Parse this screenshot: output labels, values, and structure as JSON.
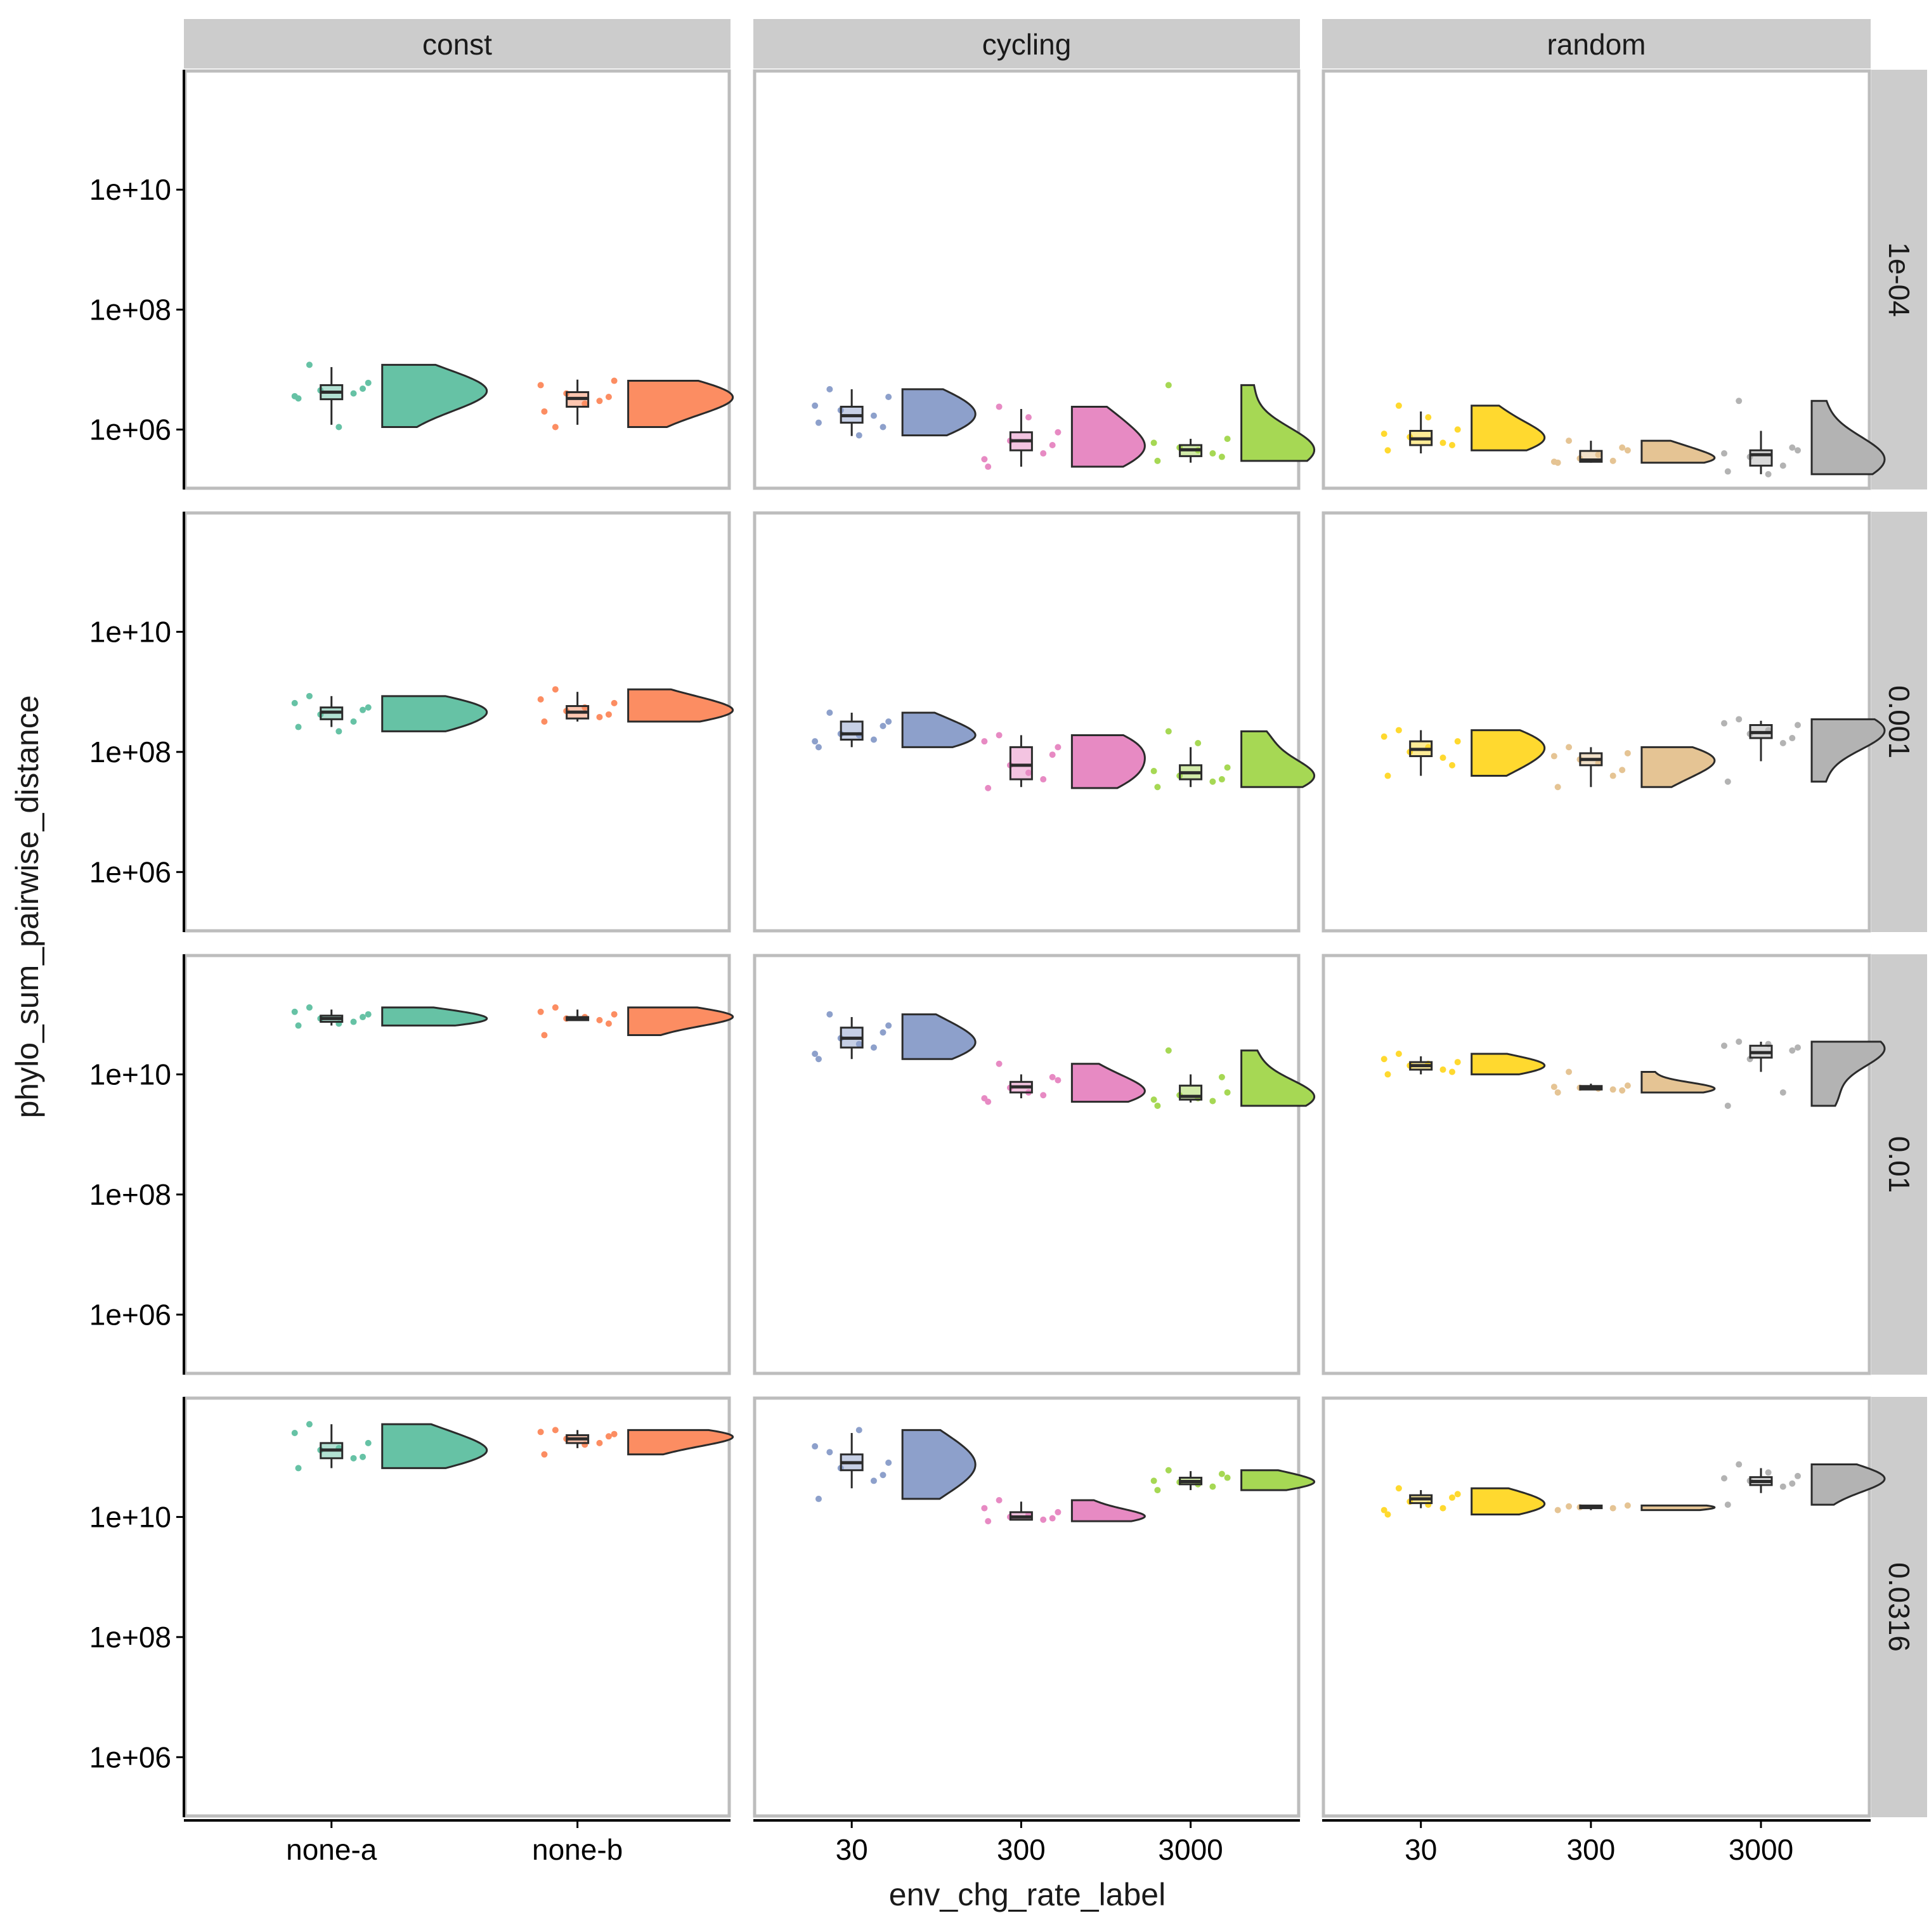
{
  "chart_data": {
    "type": "raincloud",
    "xlabel": "env_chg_rate_label",
    "ylabel": "phylo_sum_pairwise_distance",
    "y_scale": "log10",
    "ylim": [
      100000.0,
      1000000000000.0
    ],
    "y_ticks": [
      {
        "value": 1000000.0,
        "label": "1e+06"
      },
      {
        "value": 100000000.0,
        "label": "1e+08"
      },
      {
        "value": 10000000000.0,
        "label": "1e+10"
      }
    ],
    "column_facets": [
      {
        "label": "const",
        "categories": [
          "none-a",
          "none-b"
        ]
      },
      {
        "label": "cycling",
        "categories": [
          "30",
          "300",
          "3000"
        ]
      },
      {
        "label": "random",
        "categories": [
          "30",
          "300",
          "3000"
        ]
      }
    ],
    "row_facets": [
      "1e-04",
      "0.001",
      "0.01",
      "0.0316"
    ],
    "colors": {
      "none-a": "#66c2a5",
      "none-b": "#fc8d62",
      "cycling-30": "#8da0cb",
      "cycling-300": "#e78ac3",
      "cycling-3000": "#a6d854",
      "random-30": "#ffd92f",
      "random-300": "#e5c494",
      "random-3000": "#b3b3b3"
    },
    "panels": [
      {
        "row": "1e-04",
        "col": "const",
        "groups": [
          {
            "category": "none-a",
            "min": 1200000.0,
            "q1": 3200000.0,
            "median": 4200000.0,
            "q3": 5500000.0,
            "max": 11000000.0,
            "points": [
              3300000.0,
              4000000.0,
              4500000.0,
              6000000.0,
              12000000.0,
              1100000.0,
              4800000.0,
              3600000.0
            ]
          },
          {
            "category": "none-b",
            "min": 1200000.0,
            "q1": 2400000.0,
            "median": 3300000.0,
            "q3": 4200000.0,
            "max": 6800000.0,
            "points": [
              2000000.0,
              3000000.0,
              4000000.0,
              6500000.0,
              1100000.0,
              2700000.0,
              3500000.0,
              5500000.0
            ]
          }
        ]
      },
      {
        "row": "1e-04",
        "col": "cycling",
        "groups": [
          {
            "category": "30",
            "min": 780000.0,
            "q1": 1300000.0,
            "median": 1700000.0,
            "q3": 2400000.0,
            "max": 4700000.0,
            "points": [
              1300000.0,
              1700000.0,
              2100000.0,
              3500000.0,
              4700000.0,
              800000.0,
              1100000.0,
              2500000.0
            ]
          },
          {
            "category": "300",
            "min": 240000.0,
            "q1": 450000.0,
            "median": 650000.0,
            "q3": 900000.0,
            "max": 2200000.0,
            "points": [
              240000.0,
              400000.0,
              650000.0,
              900000.0,
              2400000.0,
              1600000.0,
              550000.0,
              320000.0
            ]
          },
          {
            "category": "3000",
            "min": 280000.0,
            "q1": 360000.0,
            "median": 460000.0,
            "q3": 550000.0,
            "max": 700000.0,
            "points": [
              300000.0,
              400000.0,
              500000.0,
              700000.0,
              5500000.0,
              450000.0,
              350000.0,
              600000.0
            ]
          }
        ]
      },
      {
        "row": "1e-04",
        "col": "random",
        "groups": [
          {
            "category": "30",
            "min": 400000.0,
            "q1": 550000.0,
            "median": 700000.0,
            "q3": 950000.0,
            "max": 2000000.0,
            "points": [
              450000.0,
              600000.0,
              750000.0,
              1000000.0,
              2500000.0,
              1600000.0,
              550000.0,
              850000.0
            ]
          },
          {
            "category": "300",
            "min": 280000.0,
            "q1": 290000.0,
            "median": 310000.0,
            "q3": 440000.0,
            "max": 650000.0,
            "points": [
              280000.0,
              300000.0,
              330000.0,
              450000.0,
              650000.0,
              380000.0,
              500000.0,
              290000.0
            ]
          },
          {
            "category": "3000",
            "min": 180000.0,
            "q1": 250000.0,
            "median": 380000.0,
            "q3": 450000.0,
            "max": 950000.0,
            "points": [
              200000.0,
              250000.0,
              350000.0,
              450000.0,
              3000000.0,
              180000.0,
              500000.0,
              400000.0
            ]
          }
        ]
      },
      {
        "row": "0.001",
        "col": "const",
        "groups": [
          {
            "category": "none-a",
            "min": 260000000.0,
            "q1": 350000000.0,
            "median": 460000000.0,
            "q3": 550000000.0,
            "max": 850000000.0,
            "points": [
              260000000.0,
              320000000.0,
              420000000.0,
              550000000.0,
              850000000.0,
              220000000.0,
              500000000.0,
              650000000.0
            ]
          },
          {
            "category": "none-b",
            "min": 320000000.0,
            "q1": 360000000.0,
            "median": 460000000.0,
            "q3": 580000000.0,
            "max": 1000000000.0,
            "points": [
              320000000.0,
              380000000.0,
              480000000.0,
              650000000.0,
              1100000000.0,
              550000000.0,
              420000000.0,
              750000000.0
            ]
          }
        ]
      },
      {
        "row": "0.001",
        "col": "cycling",
        "groups": [
          {
            "category": "30",
            "min": 120000000.0,
            "q1": 160000000.0,
            "median": 200000000.0,
            "q3": 320000000.0,
            "max": 450000000.0,
            "points": [
              120000000.0,
              160000000.0,
              200000000.0,
              320000000.0,
              450000000.0,
              190000000.0,
              270000000.0,
              150000000.0
            ]
          },
          {
            "category": "300",
            "min": 26000000.0,
            "q1": 35000000.0,
            "median": 60000000.0,
            "q3": 120000000.0,
            "max": 190000000.0,
            "points": [
              25000000.0,
              35000000.0,
              60000000.0,
              120000000.0,
              190000000.0,
              45000000.0,
              90000000.0,
              150000000.0
            ]
          },
          {
            "category": "3000",
            "min": 26000000.0,
            "q1": 35000000.0,
            "median": 45000000.0,
            "q3": 60000000.0,
            "max": 120000000.0,
            "points": [
              26000000.0,
              32000000.0,
              40000000.0,
              55000000.0,
              220000000.0,
              140000000.0,
              35000000.0,
              48000000.0
            ]
          }
        ]
      },
      {
        "row": "0.001",
        "col": "random",
        "groups": [
          {
            "category": "30",
            "min": 40000000.0,
            "q1": 85000000.0,
            "median": 110000000.0,
            "q3": 150000000.0,
            "max": 230000000.0,
            "points": [
              40000000.0,
              80000000.0,
              100000000.0,
              150000000.0,
              230000000.0,
              120000000.0,
              60000000.0,
              180000000.0
            ]
          },
          {
            "category": "300",
            "min": 26000000.0,
            "q1": 60000000.0,
            "median": 75000000.0,
            "q3": 95000000.0,
            "max": 120000000.0,
            "points": [
              26000000.0,
              40000000.0,
              75000000.0,
              95000000.0,
              120000000.0,
              65000000.0,
              50000000.0,
              85000000.0
            ]
          },
          {
            "category": "3000",
            "min": 70000000.0,
            "q1": 170000000.0,
            "median": 210000000.0,
            "q3": 280000000.0,
            "max": 330000000.0,
            "points": [
              32000000.0,
              140000000.0,
              200000000.0,
              280000000.0,
              350000000.0,
              230000000.0,
              170000000.0,
              300000000.0
            ]
          }
        ]
      },
      {
        "row": "0.01",
        "col": "const",
        "groups": [
          {
            "category": "none-a",
            "min": 65000000000.0,
            "q1": 75000000000.0,
            "median": 85000000000.0,
            "q3": 95000000000.0,
            "max": 120000000000.0,
            "points": [
              65000000000.0,
              75000000000.0,
              85000000000.0,
              100000000000.0,
              130000000000.0,
              70000000000.0,
              90000000000.0,
              110000000000.0
            ]
          },
          {
            "category": "none-b",
            "min": 80000000000.0,
            "q1": 80000000000.0,
            "median": 88000000000.0,
            "q3": 90000000000.0,
            "max": 120000000000.0,
            "points": [
              45000000000.0,
              80000000000.0,
              85000000000.0,
              100000000000.0,
              130000000000.0,
              90000000000.0,
              70000000000.0,
              110000000000.0
            ]
          }
        ]
      },
      {
        "row": "0.01",
        "col": "cycling",
        "groups": [
          {
            "category": "30",
            "min": 18000000000.0,
            "q1": 28000000000.0,
            "median": 40000000000.0,
            "q3": 60000000000.0,
            "max": 90000000000.0,
            "points": [
              18000000000.0,
              28000000000.0,
              40000000000.0,
              65000000000.0,
              100000000000.0,
              32000000000.0,
              50000000000.0,
              22000000000.0
            ]
          },
          {
            "category": "300",
            "min": 4000000000.0,
            "q1": 5000000000.0,
            "median": 6200000000.0,
            "q3": 7500000000.0,
            "max": 10000000000.0,
            "points": [
              3500000000.0,
              4500000000.0,
              6000000000.0,
              8000000000.0,
              15000000000.0,
              5000000000.0,
              9000000000.0,
              4000000000.0
            ]
          },
          {
            "category": "3000",
            "min": 3400000000.0,
            "q1": 3800000000.0,
            "median": 4300000000.0,
            "q3": 6500000000.0,
            "max": 10000000000.0,
            "points": [
              3000000000.0,
              3600000000.0,
              4500000000.0,
              5000000000.0,
              25000000000.0,
              4000000000.0,
              9000000000.0,
              3800000000.0
            ]
          }
        ]
      },
      {
        "row": "0.01",
        "col": "random",
        "groups": [
          {
            "category": "30",
            "min": 10000000000.0,
            "q1": 12000000000.0,
            "median": 14000000000.0,
            "q3": 16000000000.0,
            "max": 20000000000.0,
            "points": [
              10000000000.0,
              12000000000.0,
              14000000000.0,
              16000000000.0,
              22000000000.0,
              15000000000.0,
              11000000000.0,
              18000000000.0
            ]
          },
          {
            "category": "300",
            "min": 5500000000.0,
            "q1": 5600000000.0,
            "median": 6000000000.0,
            "q3": 6400000000.0,
            "max": 7000000000.0,
            "points": [
              5000000000.0,
              5600000000.0,
              6000000000.0,
              6500000000.0,
              11000000000.0,
              5800000000.0,
              5400000000.0,
              6200000000.0
            ]
          },
          {
            "category": "3000",
            "min": 11000000000.0,
            "q1": 19000000000.0,
            "median": 23000000000.0,
            "q3": 30000000000.0,
            "max": 35000000000.0,
            "points": [
              3000000000.0,
              5000000000.0,
              18000000000.0,
              28000000000.0,
              35000000000.0,
              32000000000.0,
              25000000000.0,
              30000000000.0
            ]
          }
        ]
      },
      {
        "row": "0.0316",
        "col": "const",
        "groups": [
          {
            "category": "none-a",
            "min": 65000000000.0,
            "q1": 95000000000.0,
            "median": 130000000000.0,
            "q3": 170000000000.0,
            "max": 350000000000.0,
            "points": [
              65000000000.0,
              95000000000.0,
              130000000000.0,
              170000000000.0,
              350000000000.0,
              140000000000.0,
              100000000000.0,
              250000000000.0
            ]
          },
          {
            "category": "none-b",
            "min": 140000000000.0,
            "q1": 170000000000.0,
            "median": 200000000000.0,
            "q3": 230000000000.0,
            "max": 280000000000.0,
            "points": [
              110000000000.0,
              170000000000.0,
              200000000000.0,
              240000000000.0,
              280000000000.0,
              160000000000.0,
              220000000000.0,
              260000000000.0
            ]
          }
        ]
      },
      {
        "row": "0.0316",
        "col": "cycling",
        "groups": [
          {
            "category": "30",
            "min": 30000000000.0,
            "q1": 60000000000.0,
            "median": 80000000000.0,
            "q3": 110000000000.0,
            "max": 250000000000.0,
            "points": [
              20000000000.0,
              40000000000.0,
              65000000000.0,
              80000000000.0,
              120000000000.0,
              280000000000.0,
              50000000000.0,
              150000000000.0
            ]
          },
          {
            "category": "300",
            "min": 9000000000.0,
            "q1": 9000000000.0,
            "median": 10000000000.0,
            "q3": 12000000000.0,
            "max": 18000000000.0,
            "points": [
              8500000000.0,
              9000000000.0,
              10000000000.0,
              12000000000.0,
              19000000000.0,
              11000000000.0,
              9500000000.0,
              14000000000.0
            ]
          },
          {
            "category": "3000",
            "min": 28000000000.0,
            "q1": 35000000000.0,
            "median": 39000000000.0,
            "q3": 45000000000.0,
            "max": 58000000000.0,
            "points": [
              28000000000.0,
              32000000000.0,
              38000000000.0,
              45000000000.0,
              60000000000.0,
              35000000000.0,
              52000000000.0,
              40000000000.0
            ]
          }
        ]
      },
      {
        "row": "0.0316",
        "col": "random",
        "groups": [
          {
            "category": "30",
            "min": 14000000000.0,
            "q1": 17000000000.0,
            "median": 20000000000.0,
            "q3": 23000000000.0,
            "max": 28000000000.0,
            "points": [
              11000000000.0,
              14000000000.0,
              18000000000.0,
              24000000000.0,
              30000000000.0,
              16000000000.0,
              21000000000.0,
              13000000000.0
            ]
          },
          {
            "category": "300",
            "min": 13000000000.0,
            "q1": 14000000000.0,
            "median": 14500000000.0,
            "q3": 15500000000.0,
            "max": 16000000000.0,
            "points": [
              13000000000.0,
              14000000000.0,
              14500000000.0,
              15500000000.0,
              15000000000.0
            ]
          },
          {
            "category": "3000",
            "min": 25000000000.0,
            "q1": 34000000000.0,
            "median": 39000000000.0,
            "q3": 46000000000.0,
            "max": 65000000000.0,
            "points": [
              16000000000.0,
              32000000000.0,
              40000000000.0,
              48000000000.0,
              75000000000.0,
              55000000000.0,
              36000000000.0,
              44000000000.0
            ]
          }
        ]
      }
    ]
  }
}
